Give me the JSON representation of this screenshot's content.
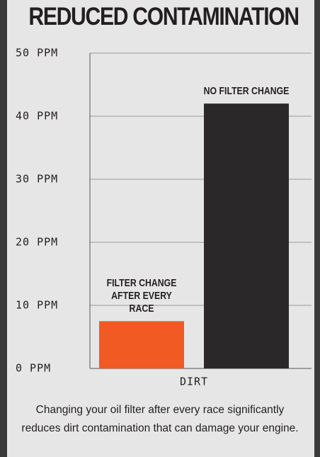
{
  "chart_data": {
    "type": "bar",
    "title": "REDUCED CONTAMINATION",
    "categories": [
      "DIRT"
    ],
    "series": [
      {
        "name": "FILTER CHANGE AFTER EVERY RACE",
        "color": "#f15a22",
        "values": [
          7.5
        ]
      },
      {
        "name": "NO FILTER CHANGE",
        "color": "#2b2829",
        "values": [
          42
        ]
      }
    ],
    "ylim": [
      0,
      50
    ],
    "yticks": [
      {
        "value": 0,
        "label": "0 PPM"
      },
      {
        "value": 10,
        "label": "10 PPM"
      },
      {
        "value": 20,
        "label": "20 PPM"
      },
      {
        "value": 30,
        "label": "30 PPM"
      },
      {
        "value": 40,
        "label": "40 PPM"
      },
      {
        "value": 50,
        "label": "50 PPM"
      }
    ],
    "grid": true,
    "caption": "Changing your oil filter after every race significantly reduces dirt contamination that can damage your engine."
  }
}
